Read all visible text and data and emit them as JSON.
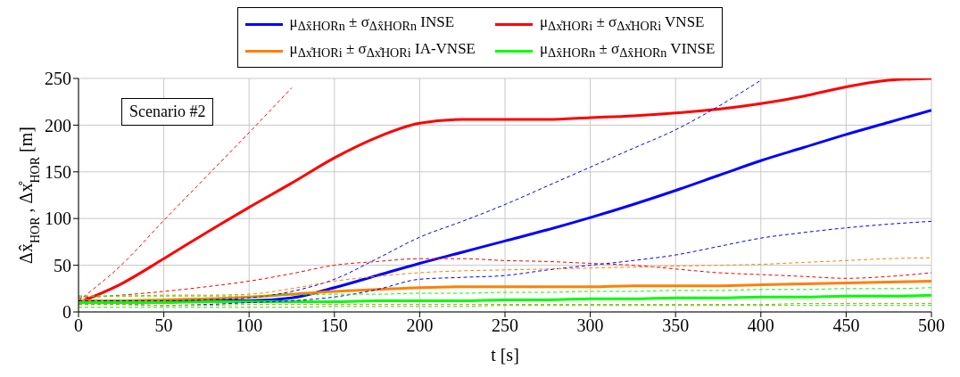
{
  "chart_data": {
    "type": "line",
    "xlabel": "t [s]",
    "ylabel": "Δx̂$_{HOR}$, Δx̊$_{HOR}$ [m]",
    "annotations": [
      "Scenario #2"
    ],
    "x": [
      0,
      25,
      50,
      75,
      100,
      125,
      150,
      175,
      200,
      225,
      250,
      275,
      300,
      325,
      350,
      375,
      400,
      425,
      450,
      475,
      500
    ],
    "xlim": [
      0,
      500
    ],
    "xticks": [
      0,
      50,
      100,
      150,
      200,
      250,
      300,
      350,
      400,
      450,
      500
    ],
    "ylim": [
      0,
      250
    ],
    "yticks": [
      0,
      50,
      100,
      150,
      200,
      250
    ],
    "grid": true,
    "legend": "top",
    "line_style": "solid",
    "marker": "none",
    "series": [
      {
        "name": "μ$_{Δx̂HORn}$ ± σ$_{Δx̂HORn}$ INSE",
        "color": "#0000ff",
        "values": [
          null,
          null,
          12,
          12,
          12,
          15,
          26,
          39,
          52,
          64,
          76,
          88,
          101,
          115,
          130,
          146,
          162,
          176,
          190,
          203,
          216
        ]
      },
      {
        "name": "μ$_{Δx̊HORi}$ ± σ$_{Δx̊HORi}$ VNSE",
        "color": "#ff0000",
        "values": [
          10,
          30,
          57,
          85,
          112,
          138,
          165,
          187,
          202,
          206,
          206,
          206,
          208,
          210,
          213,
          217,
          223,
          231,
          241,
          248,
          250
        ]
      },
      {
        "name": "μ$_{Δx̊HORi}$ ± σ$_{Δx̊HORi}$ IA-VNSE",
        "color": "#ff8000",
        "values": [
          12,
          12,
          13,
          14,
          16,
          19,
          22,
          24,
          26,
          27,
          27,
          27,
          27,
          28,
          28,
          28,
          29,
          30,
          31,
          32,
          33
        ]
      },
      {
        "name": "μ$_{Δx̂HORn}$ ± σ$_{Δx̂HORn}$ VINSE",
        "color": "#00ff00",
        "values": [
          10,
          10,
          10,
          11,
          11,
          11,
          11,
          12,
          12,
          12,
          13,
          13,
          14,
          14,
          15,
          15,
          16,
          16,
          17,
          17,
          18
        ]
      },
      {
        "color": "#0000ff",
        "line_style": "dashed",
        "values": [
          12,
          12,
          12,
          13,
          15,
          22,
          35,
          57,
          80,
          97,
          115,
          135,
          155,
          175,
          195,
          220,
          248,
          null,
          null,
          null,
          null
        ]
      },
      {
        "color": "#0000ff",
        "line_style": "dashed",
        "values": [
          8,
          8,
          7,
          8,
          10,
          12,
          16,
          24,
          35,
          37,
          39,
          45,
          50,
          55,
          61,
          70,
          79,
          85,
          90,
          94,
          97
        ]
      },
      {
        "color": "#ff0000",
        "line_style": "dashed",
        "values": [
          12,
          50,
          98,
          145,
          192,
          240,
          null,
          null,
          null,
          null,
          null,
          null,
          null,
          null,
          null,
          null,
          null,
          null,
          null,
          null,
          null
        ]
      },
      {
        "color": "#ff0000",
        "line_style": "dashed",
        "values": [
          15,
          18,
          22,
          27,
          33,
          41,
          50,
          54,
          57,
          57,
          55,
          54,
          52,
          50,
          46,
          42,
          40,
          38,
          36,
          38,
          42
        ]
      },
      {
        "color": "#ff8000",
        "line_style": "dashed",
        "values": [
          17,
          17,
          18,
          18,
          19,
          25,
          33,
          38,
          42,
          44,
          45,
          46,
          47,
          48,
          49,
          50,
          51,
          53,
          55,
          57,
          58
        ]
      },
      {
        "color": "#ff8000",
        "line_style": "dashed",
        "values": [
          8,
          8,
          7,
          7,
          8,
          8,
          8,
          8,
          8,
          8,
          8,
          8,
          8,
          8,
          8,
          8,
          8,
          9,
          9,
          9,
          9
        ]
      },
      {
        "color": "#00ff00",
        "line_style": "dashed",
        "values": [
          17,
          17,
          17,
          17,
          17,
          18,
          19,
          19,
          20,
          20,
          21,
          21,
          22,
          22,
          23,
          23,
          24,
          24,
          25,
          25,
          26
        ]
      },
      {
        "color": "#00ff00",
        "line_style": "dashed",
        "values": [
          5,
          5,
          5,
          5,
          5,
          5,
          6,
          6,
          6,
          6,
          7,
          7,
          7,
          7,
          7,
          7,
          7,
          7,
          7,
          7,
          7
        ]
      }
    ]
  }
}
